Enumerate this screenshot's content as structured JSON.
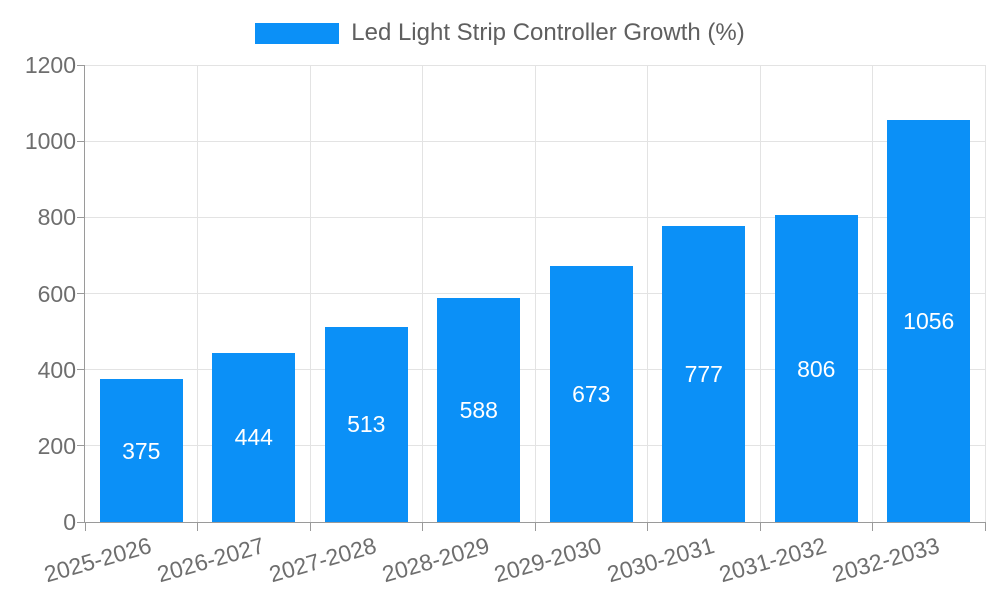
{
  "legend": {
    "label": "Led Light Strip Controller Growth (%)"
  },
  "chart_data": {
    "type": "bar",
    "title": "",
    "categories": [
      "2025-2026",
      "2026-2027",
      "2027-2028",
      "2028-2029",
      "2029-2030",
      "2030-2031",
      "2031-2032",
      "2032-2033"
    ],
    "values": [
      375,
      444,
      513,
      588,
      673,
      777,
      806,
      1056
    ],
    "series_name": "Led Light Strip Controller Growth (%)",
    "xlabel": "",
    "ylabel": "",
    "ylim": [
      0,
      1200
    ],
    "yticks": [
      0,
      200,
      400,
      600,
      800,
      1000,
      1200
    ],
    "grid": true,
    "legend_position": "top-center",
    "value_labels": "inside-center",
    "x_label_rotation_deg": -16,
    "colors": {
      "bar": "#0b90f7",
      "bar_label": "#ffffff",
      "legend_text": "#5f5f5f",
      "tick_text": "#6e6e6e",
      "grid": "#e3e3e3",
      "axis": "#9a9a9a",
      "background": "#ffffff"
    }
  }
}
